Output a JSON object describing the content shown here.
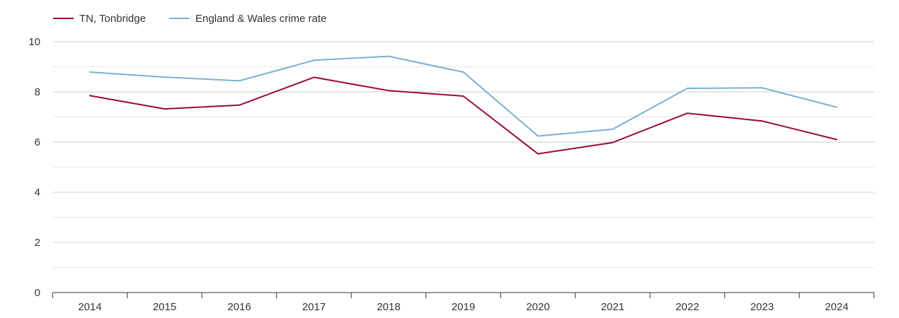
{
  "chart_data": {
    "type": "line",
    "title": "",
    "xlabel": "",
    "ylabel": "",
    "categories": [
      "2014",
      "2015",
      "2016",
      "2017",
      "2018",
      "2019",
      "2020",
      "2021",
      "2022",
      "2023",
      "2024"
    ],
    "ylim": [
      0,
      10
    ],
    "yticks": [
      0,
      2,
      4,
      6,
      8,
      10
    ],
    "grid": true,
    "legend_position": "top-left",
    "series": [
      {
        "name": "TN, Tonbridge",
        "color": "#9b0a33",
        "values": [
          7.85,
          7.32,
          7.47,
          8.58,
          8.05,
          7.83,
          5.53,
          5.98,
          7.15,
          6.84,
          6.1
        ]
      },
      {
        "name": "England & Wales crime rate",
        "color": "#7ab0d2",
        "values": [
          8.79,
          8.59,
          8.44,
          9.26,
          9.42,
          8.79,
          6.24,
          6.51,
          8.14,
          8.16,
          7.39
        ]
      }
    ]
  }
}
